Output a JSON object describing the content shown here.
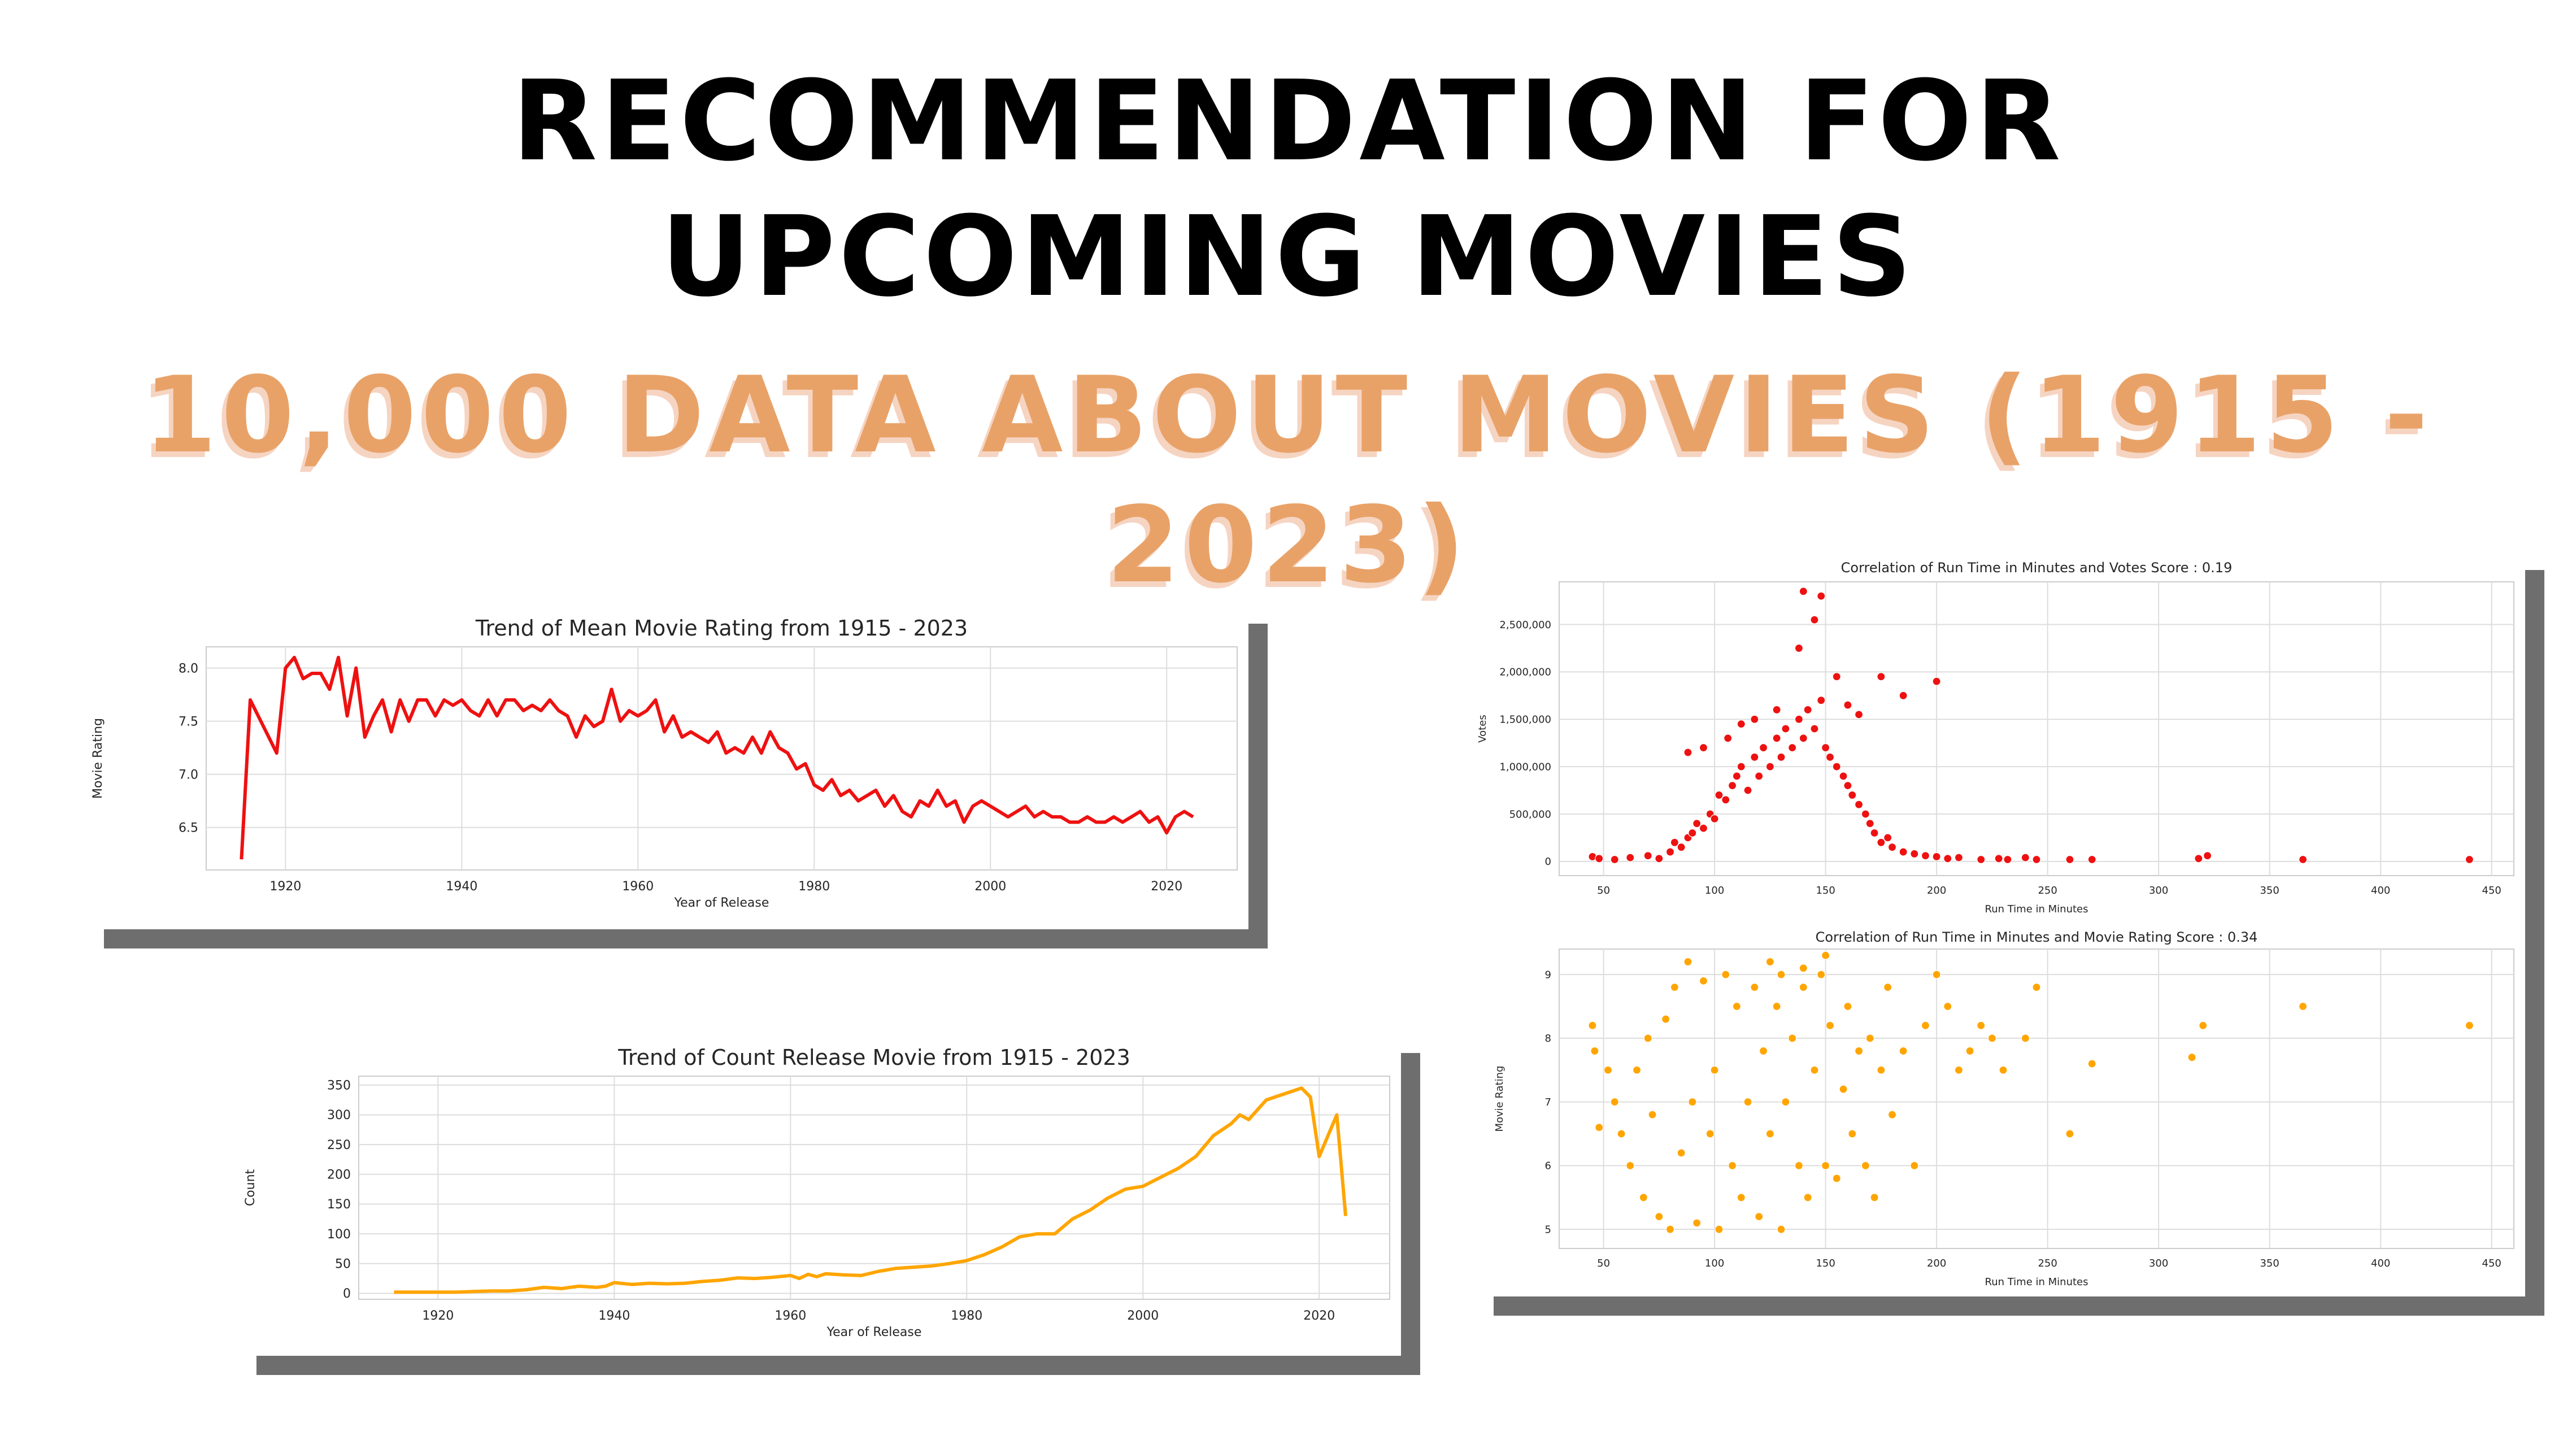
{
  "header": {
    "line1": "RECOMMENDATION FOR",
    "line2": "UPCOMING MOVIES",
    "subtitle": "10,000 DATA ABOUT MOVIES (1915 - 2023)"
  },
  "colors": {
    "red": "#ee1111",
    "orange": "#ffa500",
    "subtitle": "#e8a268",
    "grid": "#dddddd"
  },
  "chart_data": [
    {
      "type": "line",
      "title": "Trend of Mean Movie Rating from 1915 - 2023",
      "xlabel": "Year of Release",
      "ylabel": "Movie Rating",
      "xlim": [
        1911,
        2028
      ],
      "ylim": [
        6.1,
        8.2
      ],
      "xticks": [
        1920,
        1940,
        1960,
        1980,
        2000,
        2020
      ],
      "yticks": [
        6.5,
        7.0,
        7.5,
        8.0
      ],
      "ytick_labels": [
        "6.5",
        "7.0",
        "7.5",
        "8.0"
      ],
      "grid": true,
      "color": "#ee1111",
      "x": [
        1915,
        1916,
        1919,
        1920,
        1921,
        1922,
        1923,
        1924,
        1925,
        1926,
        1927,
        1928,
        1929,
        1930,
        1931,
        1932,
        1933,
        1934,
        1935,
        1936,
        1937,
        1938,
        1939,
        1940,
        1941,
        1942,
        1943,
        1944,
        1945,
        1946,
        1947,
        1948,
        1949,
        1950,
        1951,
        1952,
        1953,
        1954,
        1955,
        1956,
        1957,
        1958,
        1959,
        1960,
        1961,
        1962,
        1963,
        1964,
        1965,
        1966,
        1967,
        1968,
        1969,
        1970,
        1971,
        1972,
        1973,
        1974,
        1975,
        1976,
        1977,
        1978,
        1979,
        1980,
        1981,
        1982,
        1983,
        1984,
        1985,
        1986,
        1987,
        1988,
        1989,
        1990,
        1991,
        1992,
        1993,
        1994,
        1995,
        1996,
        1997,
        1998,
        1999,
        2000,
        2001,
        2002,
        2003,
        2004,
        2005,
        2006,
        2007,
        2008,
        2009,
        2010,
        2011,
        2012,
        2013,
        2014,
        2015,
        2016,
        2017,
        2018,
        2019,
        2020,
        2021,
        2022,
        2023
      ],
      "y": [
        6.2,
        7.7,
        7.2,
        8.0,
        8.1,
        7.9,
        7.95,
        7.95,
        7.8,
        8.1,
        7.55,
        8.0,
        7.35,
        7.55,
        7.7,
        7.4,
        7.7,
        7.5,
        7.7,
        7.7,
        7.55,
        7.7,
        7.65,
        7.7,
        7.6,
        7.55,
        7.7,
        7.55,
        7.7,
        7.7,
        7.6,
        7.65,
        7.6,
        7.7,
        7.6,
        7.55,
        7.35,
        7.55,
        7.45,
        7.5,
        7.8,
        7.5,
        7.6,
        7.55,
        7.6,
        7.7,
        7.4,
        7.55,
        7.35,
        7.4,
        7.35,
        7.3,
        7.4,
        7.2,
        7.25,
        7.2,
        7.35,
        7.2,
        7.4,
        7.25,
        7.2,
        7.05,
        7.1,
        6.9,
        6.85,
        6.95,
        6.8,
        6.85,
        6.75,
        6.8,
        6.85,
        6.7,
        6.8,
        6.65,
        6.6,
        6.75,
        6.7,
        6.85,
        6.7,
        6.75,
        6.55,
        6.7,
        6.75,
        6.7,
        6.65,
        6.6,
        6.65,
        6.7,
        6.6,
        6.65,
        6.6,
        6.6,
        6.55,
        6.55,
        6.6,
        6.55,
        6.55,
        6.6,
        6.55,
        6.6,
        6.65,
        6.55,
        6.6,
        6.45,
        6.6,
        6.65,
        6.6
      ]
    },
    {
      "type": "line",
      "title": "Trend of Count Release Movie from 1915 - 2023",
      "xlabel": "Year of Release",
      "ylabel": "Count",
      "xlim": [
        1911,
        2028
      ],
      "ylim": [
        -10,
        365
      ],
      "xticks": [
        1920,
        1940,
        1960,
        1980,
        2000,
        2020
      ],
      "yticks": [
        0,
        50,
        100,
        150,
        200,
        250,
        300,
        350
      ],
      "ytick_labels": [
        "0",
        "50",
        "100",
        "150",
        "200",
        "250",
        "300",
        "350"
      ],
      "grid": true,
      "color": "#ffa500",
      "x": [
        1915,
        1920,
        1922,
        1924,
        1926,
        1928,
        1930,
        1932,
        1934,
        1936,
        1938,
        1939,
        1940,
        1942,
        1944,
        1946,
        1948,
        1950,
        1952,
        1954,
        1956,
        1958,
        1960,
        1961,
        1962,
        1963,
        1964,
        1966,
        1968,
        1970,
        1972,
        1974,
        1976,
        1978,
        1980,
        1982,
        1984,
        1986,
        1988,
        1990,
        1992,
        1994,
        1996,
        1998,
        2000,
        2002,
        2004,
        2006,
        2008,
        2010,
        2011,
        2012,
        2014,
        2016,
        2018,
        2019,
        2020,
        2022,
        2023
      ],
      "y": [
        2,
        2,
        2,
        3,
        4,
        4,
        6,
        10,
        8,
        12,
        10,
        12,
        18,
        15,
        17,
        16,
        17,
        20,
        22,
        26,
        25,
        27,
        30,
        25,
        32,
        28,
        33,
        31,
        30,
        37,
        42,
        44,
        46,
        50,
        55,
        65,
        78,
        95,
        100,
        100,
        125,
        140,
        160,
        175,
        180,
        195,
        210,
        230,
        265,
        285,
        300,
        292,
        325,
        335,
        345,
        330,
        230,
        300,
        130
      ]
    },
    {
      "type": "scatter",
      "title": "Correlation of Run Time in Minutes and Votes Score : 0.19",
      "xlabel": "Run Time in Minutes",
      "ylabel": "Votes",
      "xlim": [
        30,
        460
      ],
      "ylim": [
        -150000,
        2950000
      ],
      "xticks": [
        50,
        100,
        150,
        200,
        250,
        300,
        350,
        400,
        450
      ],
      "yticks": [
        0,
        500000,
        1000000,
        1500000,
        2000000,
        2500000
      ],
      "ytick_labels": [
        "0",
        "500,000",
        "1,000,000",
        "1,500,000",
        "2,000,000",
        "2,500,000"
      ],
      "grid": true,
      "color": "#ee1111",
      "x": [
        45,
        48,
        55,
        62,
        70,
        75,
        80,
        82,
        85,
        88,
        90,
        92,
        95,
        98,
        100,
        102,
        105,
        108,
        110,
        112,
        115,
        118,
        120,
        122,
        125,
        128,
        130,
        132,
        135,
        138,
        140,
        142,
        145,
        148,
        150,
        152,
        155,
        158,
        160,
        162,
        165,
        168,
        170,
        172,
        175,
        178,
        180,
        185,
        190,
        195,
        200,
        205,
        210,
        220,
        228,
        232,
        240,
        245,
        260,
        270,
        318,
        322,
        365,
        440,
        140,
        148,
        145,
        138,
        185,
        200,
        175,
        165,
        155,
        160,
        128,
        118,
        112,
        106,
        95,
        88
      ],
      "y": [
        50000,
        30000,
        20000,
        40000,
        60000,
        30000,
        100000,
        200000,
        150000,
        250000,
        300000,
        400000,
        350000,
        500000,
        450000,
        700000,
        650000,
        800000,
        900000,
        1000000,
        750000,
        1100000,
        900000,
        1200000,
        1000000,
        1300000,
        1100000,
        1400000,
        1200000,
        1500000,
        1300000,
        1600000,
        1400000,
        1700000,
        1200000,
        1100000,
        1000000,
        900000,
        800000,
        700000,
        600000,
        500000,
        400000,
        300000,
        200000,
        250000,
        150000,
        100000,
        80000,
        60000,
        50000,
        30000,
        40000,
        20000,
        30000,
        20000,
        40000,
        20000,
        20000,
        20000,
        30000,
        60000,
        20000,
        20000,
        2850000,
        2800000,
        2550000,
        2250000,
        1750000,
        1900000,
        1950000,
        1550000,
        1950000,
        1650000,
        1600000,
        1500000,
        1450000,
        1300000,
        1200000,
        1150000
      ]
    },
    {
      "type": "scatter",
      "title": "Correlation of Run Time in Minutes and Movie Rating Score : 0.34",
      "xlabel": "Run Time in Minutes",
      "ylabel": "Movie Rating",
      "xlim": [
        30,
        460
      ],
      "ylim": [
        4.7,
        9.4
      ],
      "xticks": [
        50,
        100,
        150,
        200,
        250,
        300,
        350,
        400,
        450
      ],
      "yticks": [
        5,
        6,
        7,
        8,
        9
      ],
      "ytick_labels": [
        "5",
        "6",
        "7",
        "8",
        "9"
      ],
      "grid": true,
      "color": "#ffa500",
      "x": [
        45,
        46,
        48,
        52,
        55,
        58,
        62,
        65,
        68,
        70,
        72,
        75,
        78,
        80,
        82,
        85,
        88,
        90,
        92,
        95,
        98,
        100,
        102,
        105,
        108,
        110,
        112,
        115,
        118,
        120,
        122,
        125,
        128,
        130,
        132,
        135,
        138,
        140,
        142,
        145,
        148,
        150,
        152,
        155,
        158,
        160,
        162,
        165,
        168,
        170,
        172,
        175,
        178,
        180,
        185,
        190,
        195,
        200,
        205,
        210,
        215,
        220,
        225,
        230,
        240,
        245,
        260,
        270,
        315,
        320,
        365,
        440,
        150,
        140,
        130,
        125
      ],
      "y": [
        8.2,
        7.8,
        6.6,
        7.5,
        7.0,
        6.5,
        6.0,
        7.5,
        5.5,
        8.0,
        6.8,
        5.2,
        8.3,
        5.0,
        8.8,
        6.2,
        9.2,
        7.0,
        5.1,
        8.9,
        6.5,
        7.5,
        5.0,
        9.0,
        6.0,
        8.5,
        5.5,
        7.0,
        8.8,
        5.2,
        7.8,
        6.5,
        8.5,
        5.0,
        7.0,
        8.0,
        6.0,
        8.8,
        5.5,
        7.5,
        9.0,
        6.0,
        8.2,
        5.8,
        7.2,
        8.5,
        6.5,
        7.8,
        6.0,
        8.0,
        5.5,
        7.5,
        8.8,
        6.8,
        7.8,
        6.0,
        8.2,
        9.0,
        8.5,
        7.5,
        7.8,
        8.2,
        8.0,
        7.5,
        8.0,
        8.8,
        6.5,
        7.6,
        7.7,
        8.2,
        8.5,
        8.2,
        9.3,
        9.1,
        9.0,
        9.2
      ]
    }
  ]
}
